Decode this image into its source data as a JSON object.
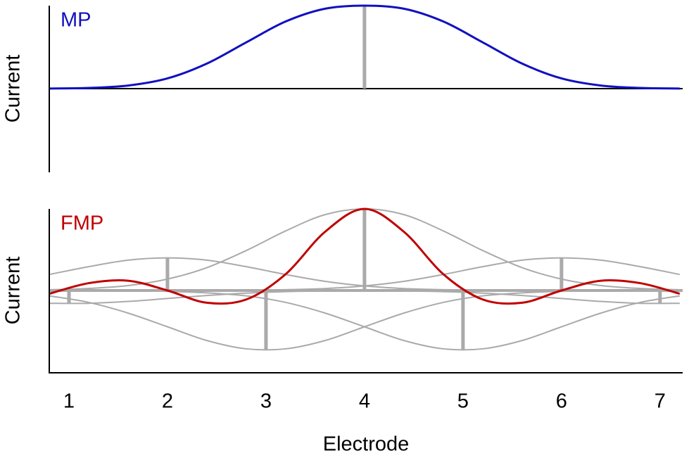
{
  "chart_data": [
    {
      "type": "line",
      "label": "MP",
      "ylabel": "Current",
      "color": "#1010c0",
      "xlim": [
        0.8,
        7.23
      ],
      "ylim": [
        -1,
        1
      ],
      "x": [
        0.8,
        1.2,
        1.6,
        2.0,
        2.4,
        2.8,
        3.2,
        3.6,
        4.0,
        4.4,
        4.8,
        5.2,
        5.6,
        6.0,
        6.4,
        6.8,
        7.2
      ],
      "values": [
        0.001,
        0.008,
        0.037,
        0.123,
        0.302,
        0.558,
        0.809,
        0.963,
        1,
        0.963,
        0.809,
        0.558,
        0.302,
        0.123,
        0.037,
        0.008,
        0.001
      ],
      "stems": {
        "color": "#aaaaaa",
        "x": [
          4
        ],
        "values": [
          1
        ]
      },
      "baseline_color": "#000000"
    },
    {
      "type": "line",
      "label": "FMP",
      "ylabel": "Current",
      "xlabel": "Electrode",
      "color": "#c00000",
      "xlim": [
        0.8,
        7.23
      ],
      "ylim": [
        -1,
        1
      ],
      "xticks": [
        1,
        2,
        3,
        4,
        5,
        6,
        7
      ],
      "x": [
        0.8,
        1.2,
        1.6,
        2.0,
        2.4,
        2.8,
        3.2,
        3.6,
        4.0,
        4.4,
        4.8,
        5.2,
        5.6,
        6.0,
        6.4,
        6.8,
        7.2
      ],
      "values": [
        -0.04,
        0.09,
        0.12,
        0.0,
        -0.15,
        -0.11,
        0.2,
        0.72,
        1,
        0.72,
        0.2,
        -0.11,
        -0.15,
        0.0,
        0.12,
        0.09,
        -0.04
      ],
      "stems": {
        "color": "#aaaaaa",
        "x": [
          1,
          2,
          3,
          4,
          5,
          6,
          7
        ],
        "values": [
          -0.16,
          0.4,
          -0.73,
          1,
          -0.73,
          0.4,
          -0.16
        ]
      },
      "baseline_color": "#aaaaaa",
      "component_color": "#aaaaaa",
      "components": [
        {
          "values": [
            -0.157,
            -0.157,
            -0.134,
            -0.098,
            -0.061,
            -0.032,
            -0.014,
            -0.006,
            -0.002,
            -0.001,
            0,
            0,
            0,
            0,
            0,
            0,
            0
          ]
        },
        {
          "values": [
            0.196,
            0.292,
            0.372,
            0.4,
            0.372,
            0.292,
            0.196,
            0.112,
            0.056,
            0.024,
            0.01,
            0.004,
            0.001,
            0,
            0,
            0,
            0
          ]
        },
        {
          "values": [
            -0.066,
            -0.146,
            -0.277,
            -0.445,
            -0.613,
            -0.715,
            -0.715,
            -0.613,
            -0.445,
            -0.277,
            -0.146,
            -0.066,
            -0.029,
            -0.011,
            -0.004,
            -0.001,
            -0.001
          ]
        },
        {
          "values": [
            0.009,
            0.025,
            0.06,
            0.14,
            0.28,
            0.49,
            0.73,
            0.93,
            1,
            0.93,
            0.73,
            0.49,
            0.28,
            0.14,
            0.06,
            0.025,
            0.009
          ]
        },
        {
          "values": [
            -0.001,
            -0.001,
            -0.004,
            -0.011,
            -0.029,
            -0.066,
            -0.146,
            -0.277,
            -0.445,
            -0.613,
            -0.715,
            -0.715,
            -0.613,
            -0.445,
            -0.277,
            -0.146,
            -0.066
          ]
        },
        {
          "values": [
            0,
            0,
            0,
            0,
            0.001,
            0.004,
            0.01,
            0.024,
            0.056,
            0.112,
            0.196,
            0.292,
            0.372,
            0.4,
            0.372,
            0.292,
            0.196
          ]
        },
        {
          "values": [
            0,
            0,
            0,
            0,
            0,
            0,
            0,
            -0.001,
            -0.002,
            -0.006,
            -0.014,
            -0.032,
            -0.061,
            -0.098,
            -0.134,
            -0.157,
            -0.157
          ]
        }
      ]
    }
  ]
}
